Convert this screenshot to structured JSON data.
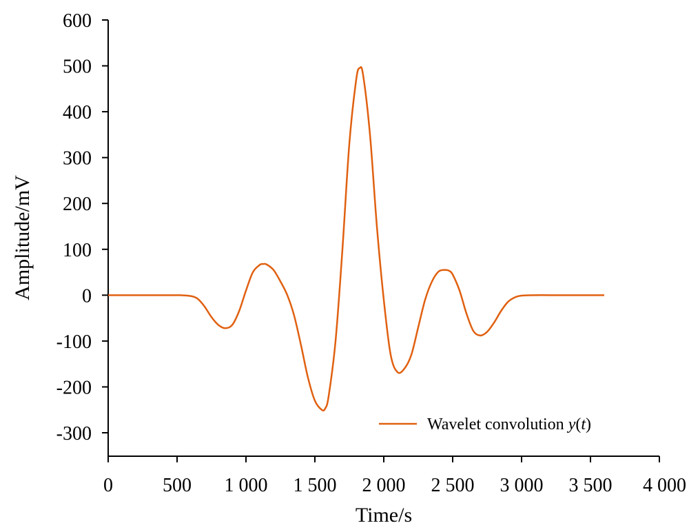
{
  "chart_data": {
    "type": "line",
    "xlabel": "Time/s",
    "ylabel": "Amplitude/mV",
    "xlim": [
      0,
      4000
    ],
    "ylim": [
      -350,
      600
    ],
    "x_ticks": [
      0,
      500,
      1000,
      1500,
      2000,
      2500,
      3000,
      3500,
      4000
    ],
    "x_tick_labels": [
      "0",
      "500",
      "1 000",
      "1 500",
      "2 000",
      "2 500",
      "3 000",
      "3 500",
      "4 000"
    ],
    "y_ticks": [
      -300,
      -200,
      -100,
      0,
      100,
      200,
      300,
      400,
      500,
      600
    ],
    "y_tick_labels": [
      "-300",
      "-200",
      "-100",
      "0",
      "100",
      "200",
      "300",
      "400",
      "500",
      "600"
    ],
    "grid": false,
    "legend": {
      "placement": "bottom-right"
    },
    "series": [
      {
        "name": "Wavelet convolution y(t)",
        "name_parts": {
          "prefix": "Wavelet convolution ",
          "func": "y",
          "open": "(",
          "arg": "t",
          "close": ")"
        },
        "color": "#E06010",
        "points": [
          [
            0,
            0
          ],
          [
            400,
            0
          ],
          [
            500,
            0
          ],
          [
            520,
            0
          ],
          [
            600,
            -2
          ],
          [
            650,
            -8
          ],
          [
            700,
            -25
          ],
          [
            750,
            -48
          ],
          [
            800,
            -65
          ],
          [
            850,
            -72
          ],
          [
            900,
            -65
          ],
          [
            950,
            -35
          ],
          [
            1000,
            10
          ],
          [
            1050,
            50
          ],
          [
            1100,
            66
          ],
          [
            1125,
            68
          ],
          [
            1150,
            67
          ],
          [
            1200,
            55
          ],
          [
            1250,
            30
          ],
          [
            1300,
            0
          ],
          [
            1350,
            -45
          ],
          [
            1400,
            -110
          ],
          [
            1450,
            -180
          ],
          [
            1500,
            -230
          ],
          [
            1550,
            -250
          ],
          [
            1575,
            -247
          ],
          [
            1600,
            -220
          ],
          [
            1650,
            -100
          ],
          [
            1700,
            100
          ],
          [
            1750,
            330
          ],
          [
            1800,
            470
          ],
          [
            1825,
            495
          ],
          [
            1850,
            480
          ],
          [
            1900,
            350
          ],
          [
            1950,
            150
          ],
          [
            2000,
            -10
          ],
          [
            2050,
            -130
          ],
          [
            2100,
            -168
          ],
          [
            2150,
            -160
          ],
          [
            2200,
            -130
          ],
          [
            2250,
            -70
          ],
          [
            2300,
            -10
          ],
          [
            2350,
            30
          ],
          [
            2400,
            52
          ],
          [
            2450,
            55
          ],
          [
            2475,
            53
          ],
          [
            2500,
            45
          ],
          [
            2550,
            10
          ],
          [
            2600,
            -40
          ],
          [
            2650,
            -78
          ],
          [
            2700,
            -88
          ],
          [
            2750,
            -80
          ],
          [
            2800,
            -60
          ],
          [
            2850,
            -35
          ],
          [
            2900,
            -15
          ],
          [
            2950,
            -5
          ],
          [
            3000,
            -1
          ],
          [
            3100,
            0
          ],
          [
            3200,
            0
          ],
          [
            3400,
            0
          ],
          [
            3600,
            0
          ]
        ]
      }
    ]
  }
}
